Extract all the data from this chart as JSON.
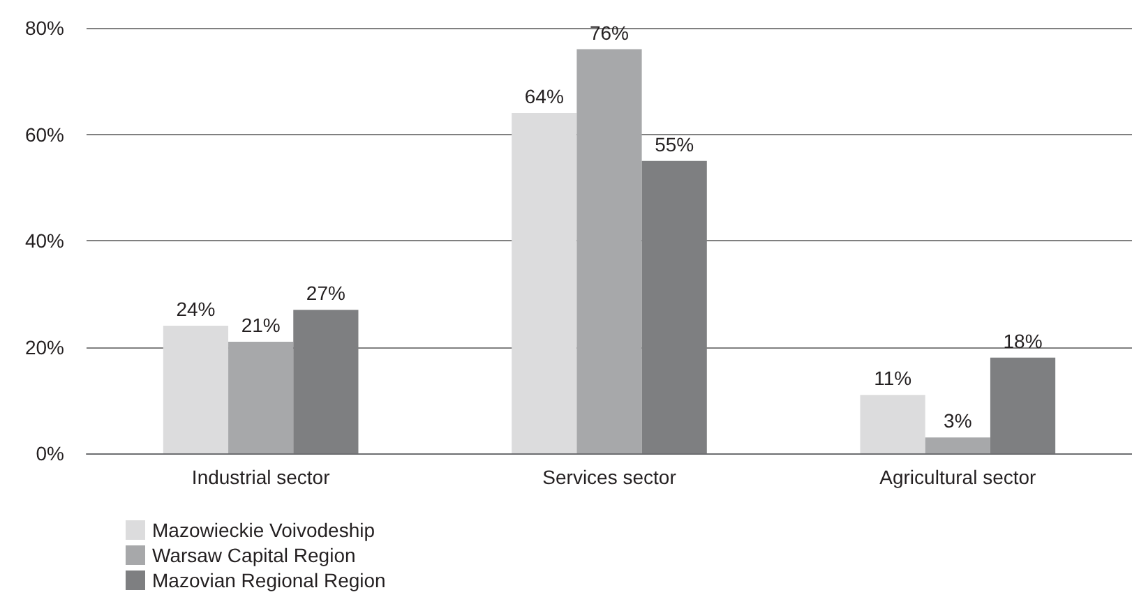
{
  "chart_data": {
    "type": "bar",
    "categories": [
      "Industrial sector",
      "Services sector",
      "Agricultural sector"
    ],
    "series": [
      {
        "name": "Mazowieckie Voivodeship",
        "color": "#dcdcdd",
        "values": [
          24,
          64,
          11
        ],
        "value_labels": [
          "24%",
          "64%",
          "11%"
        ]
      },
      {
        "name": "Warsaw Capital Region",
        "color": "#a7a8aa",
        "values": [
          21,
          76,
          3
        ],
        "value_labels": [
          "21%",
          "76%",
          "3%"
        ]
      },
      {
        "name": "Mazovian Regional Region",
        "color": "#7e7f81",
        "values": [
          27,
          55,
          18
        ],
        "value_labels": [
          "27%",
          "55%",
          "18%"
        ]
      }
    ],
    "ylim": [
      0,
      80
    ],
    "yticks": [
      {
        "value": 0,
        "label": "0%"
      },
      {
        "value": 20,
        "label": "20%"
      },
      {
        "value": 40,
        "label": "40%"
      },
      {
        "value": 60,
        "label": "60%"
      },
      {
        "value": 80,
        "label": "80%"
      }
    ],
    "grid": "y",
    "legend": "bottom left"
  }
}
